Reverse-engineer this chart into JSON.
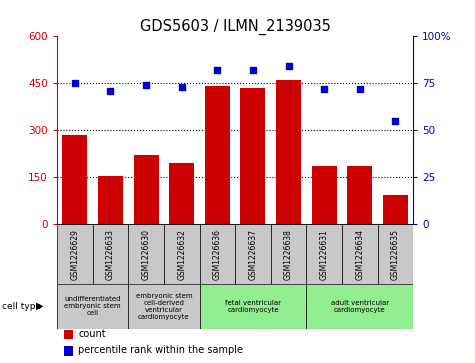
{
  "title": "GDS5603 / ILMN_2139035",
  "samples": [
    "GSM1226629",
    "GSM1226633",
    "GSM1226630",
    "GSM1226632",
    "GSM1226636",
    "GSM1226637",
    "GSM1226638",
    "GSM1226631",
    "GSM1226634",
    "GSM1226635"
  ],
  "counts": [
    285,
    155,
    220,
    195,
    440,
    435,
    460,
    185,
    185,
    95
  ],
  "percentiles": [
    75,
    71,
    74,
    73,
    82,
    82,
    84,
    72,
    72,
    55
  ],
  "ylim_left": [
    0,
    600
  ],
  "ylim_right": [
    0,
    100
  ],
  "yticks_left": [
    0,
    150,
    300,
    450,
    600
  ],
  "yticks_right": [
    0,
    25,
    50,
    75,
    100
  ],
  "bar_color": "#cc0000",
  "dot_color": "#0000cc",
  "cell_type_groups": [
    {
      "label": "undifferentiated\nembryonic stem\ncell",
      "start": 0,
      "end": 2,
      "color": "#c8c8c8"
    },
    {
      "label": "embryonic stem\ncell-derived\nventricular\ncardiomyocyte",
      "start": 2,
      "end": 4,
      "color": "#c8c8c8"
    },
    {
      "label": "fetal ventricular\ncardiomyocyte",
      "start": 4,
      "end": 7,
      "color": "#90ee90"
    },
    {
      "label": "adult ventricular\ncardiomyocyte",
      "start": 7,
      "end": 10,
      "color": "#90ee90"
    }
  ],
  "sample_box_color": "#c8c8c8",
  "legend_items": [
    {
      "color": "#cc0000",
      "label": "count"
    },
    {
      "color": "#0000cc",
      "label": "percentile rank within the sample"
    }
  ],
  "grid_yticks": [
    150,
    300,
    450
  ],
  "background_color": "#ffffff"
}
